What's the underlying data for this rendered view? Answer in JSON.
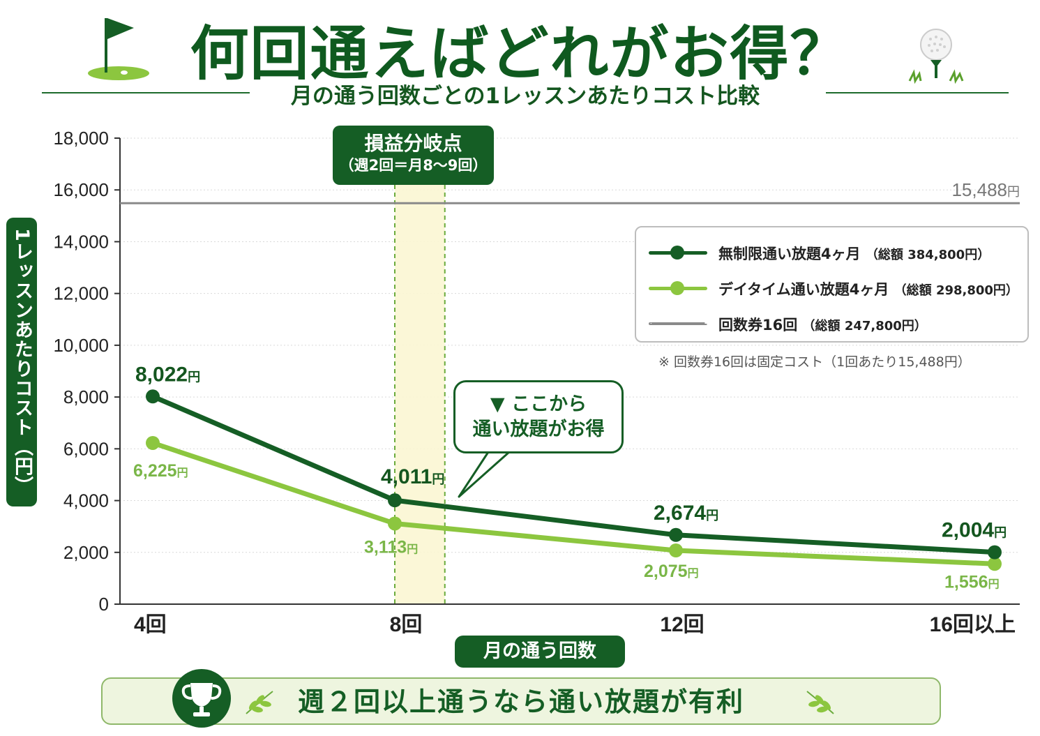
{
  "title": "何回通えばどれがお得？",
  "subtitle": "月の通う回数ごとの1レッスンあたりコスト比較",
  "icons": {
    "flag": "golf-flag-icon",
    "ball": "golf-ball-on-tee-icon",
    "trophy": "trophy-icon",
    "leaf": "leaf-branch-icon"
  },
  "colors": {
    "dark_green": "#155e25",
    "light_green": "#8cc63f",
    "ticket_gray": "#8a8a8a"
  },
  "chart_data": {
    "type": "line",
    "categories": [
      "4回",
      "8回",
      "12回",
      "16回以上"
    ],
    "series": [
      {
        "name": "無制限通い放題4ヶ月",
        "total": "（総額 384,800円）",
        "color": "#155e25",
        "values": [
          8022,
          4011,
          2674,
          2004
        ],
        "labels": [
          "8,022",
          "4,011",
          "2,674",
          "2,004"
        ]
      },
      {
        "name": "デイタイム通い放題4ヶ月",
        "total": "（総額 298,800円）",
        "color": "#8cc63f",
        "values": [
          6225,
          3113,
          2075,
          1556
        ],
        "labels": [
          "6,225",
          "3,113",
          "2,075",
          "1,556"
        ]
      },
      {
        "name": "回数券16回",
        "total": "（総額 247,800円）",
        "color": "#8a8a8a",
        "values": [
          15488,
          15488,
          15488,
          15488
        ],
        "labels": [
          "15,488"
        ]
      }
    ],
    "unit": "円",
    "xlabel": "月の通う回数",
    "ylabel": "1レッスンあたりコスト（円）",
    "ylim": [
      0,
      18000
    ],
    "yticks": [
      0,
      2000,
      4000,
      6000,
      8000,
      10000,
      12000,
      14000,
      16000,
      18000
    ],
    "ytick_labels": [
      "0",
      "2,000",
      "4,000",
      "6,000",
      "8,000",
      "10,000",
      "12,000",
      "14,000",
      "16,000",
      "18,000"
    ],
    "grid": true,
    "legend_position": "top-right",
    "breakeven": {
      "title": "損益分岐点",
      "subtitle": "（週2回＝月8〜9回）",
      "range": [
        8,
        9
      ]
    },
    "callout": [
      "▼ ここから",
      "通い放題がお得"
    ],
    "note": "※ 回数券16回は固定コスト（1回あたり15,488円）"
  },
  "banner": "週２回以上通うなら通い放題が有利"
}
